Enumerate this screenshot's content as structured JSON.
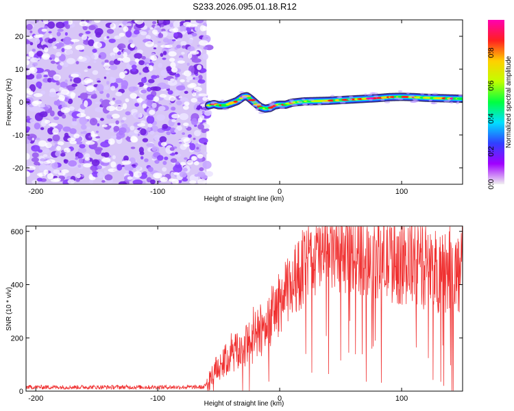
{
  "title": "S233.2026.095.01.18.R12",
  "chart_data": [
    {
      "type": "heatmap",
      "name": "spectrogram",
      "xlabel": "Height of straight line (km)",
      "ylabel": "Frequency (Hz)",
      "xlim": [
        -208,
        150
      ],
      "ylim": [
        -25,
        25
      ],
      "xticks": [
        -200,
        -100,
        0,
        100
      ],
      "yticks": [
        -20,
        -10,
        0,
        10,
        20
      ],
      "noise_region_x": [
        -208,
        -60
      ],
      "ridge": {
        "x": [
          -58,
          -54,
          -50,
          -45,
          -40,
          -35,
          -30,
          -27,
          -24,
          -20,
          -16,
          -12,
          -8,
          -4,
          0,
          5,
          10,
          20,
          30,
          40,
          50,
          60,
          70,
          80,
          90,
          100,
          110,
          120,
          130,
          140,
          150
        ],
        "freq": [
          -1.0,
          -0.6,
          -1.0,
          -1.0,
          -0.4,
          0.3,
          1.6,
          1.8,
          1.0,
          -0.3,
          -1.5,
          -2.0,
          -1.8,
          -1.0,
          -0.8,
          -0.8,
          -0.2,
          0.2,
          0.3,
          0.4,
          0.6,
          0.8,
          1.0,
          1.2,
          1.5,
          1.6,
          1.5,
          1.3,
          1.2,
          1.1,
          1.0
        ]
      },
      "colorbar": {
        "label": "Normalized spectral amplitude",
        "range": [
          0,
          1
        ],
        "ticks": [
          "0.0",
          "0.2",
          "0.4",
          "0.6",
          "0.8"
        ],
        "colors": [
          "#f0f0f0",
          "#a000ff",
          "#3040ff",
          "#00e0ff",
          "#00ff40",
          "#c0ff00",
          "#ffd000",
          "#ff2020",
          "#ff00b0"
        ]
      }
    },
    {
      "type": "line",
      "name": "snr",
      "xlabel": "Height of straight line (km)",
      "ylabel": "SNR (10 * v/v)",
      "xlim": [
        -208,
        150
      ],
      "ylim": [
        0,
        620
      ],
      "xticks": [
        -200,
        -100,
        0,
        100
      ],
      "yticks": [
        0,
        200,
        400,
        600
      ],
      "color": "#f03030",
      "envelope": {
        "x": [
          -208,
          -62,
          -58,
          -50,
          -40,
          -30,
          -20,
          -10,
          0,
          10,
          20,
          30,
          40,
          50,
          60,
          70,
          80,
          90,
          100,
          110,
          120,
          130,
          140,
          150
        ],
        "base": [
          15,
          15,
          40,
          90,
          130,
          160,
          200,
          260,
          330,
          400,
          460,
          500,
          520,
          525,
          520,
          510,
          500,
          490,
          480,
          470,
          460,
          450,
          445,
          440
        ],
        "spread": [
          8,
          8,
          40,
          60,
          70,
          80,
          100,
          110,
          120,
          130,
          140,
          150,
          160,
          160,
          160,
          160,
          160,
          160,
          160,
          160,
          160,
          160,
          160,
          160
        ]
      }
    }
  ]
}
